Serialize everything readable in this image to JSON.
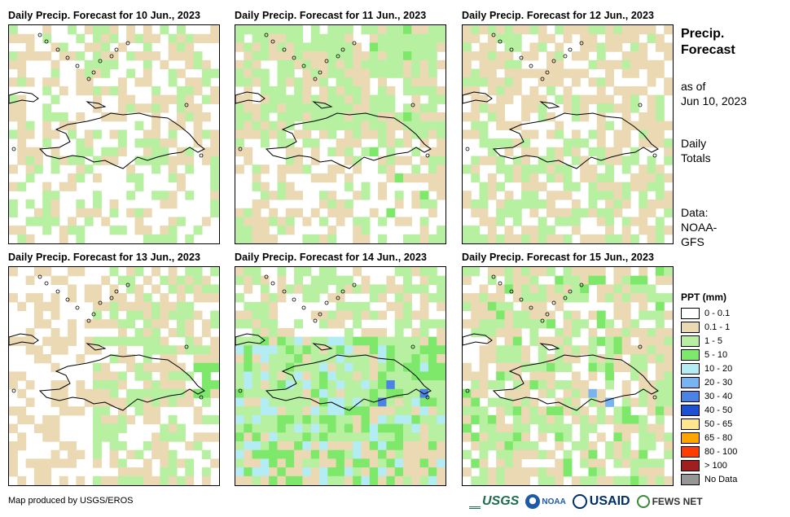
{
  "panels": [
    {
      "title": "Daily Precip. Forecast for 10 Jun., 2023",
      "seed": 11,
      "regime": "dry"
    },
    {
      "title": "Daily Precip. Forecast for 11 Jun., 2023",
      "seed": 23,
      "regime": "wetnorth"
    },
    {
      "title": "Daily Precip. Forecast for 12 Jun., 2023",
      "seed": 37,
      "regime": "drysouth"
    },
    {
      "title": "Daily Precip. Forecast for 13 Jun., 2023",
      "seed": 41,
      "regime": "drywest"
    },
    {
      "title": "Daily Precip. Forecast for 14 Jun., 2023",
      "seed": 59,
      "regime": "wet"
    },
    {
      "title": "Daily Precip. Forecast for 15 Jun., 2023",
      "seed": 67,
      "regime": "mixed"
    }
  ],
  "sidebar": {
    "title_line1": "Precip.",
    "title_line2": "Forecast",
    "asof_line1": "as of",
    "asof_line2": "Jun 10, 2023",
    "totals_line1": "Daily",
    "totals_line2": "Totals",
    "data_line1": "Data:",
    "data_line2": "NOAA-",
    "data_line3": "GFS"
  },
  "legend": {
    "title": "PPT (mm)",
    "items": [
      {
        "label": "0 - 0.1",
        "color": "#ffffff"
      },
      {
        "label": "0.1 - 1",
        "color": "#ebd9b4"
      },
      {
        "label": "1 - 5",
        "color": "#b7f0a0"
      },
      {
        "label": "5 - 10",
        "color": "#7ee86a"
      },
      {
        "label": "10 - 20",
        "color": "#b4ecf4"
      },
      {
        "label": "20 - 30",
        "color": "#78b4f0"
      },
      {
        "label": "30 - 40",
        "color": "#4a82e6"
      },
      {
        "label": "40 - 50",
        "color": "#1e50d2"
      },
      {
        "label": "50 - 65",
        "color": "#ffe68c"
      },
      {
        "label": "65 - 80",
        "color": "#ffa500"
      },
      {
        "label": "80 - 100",
        "color": "#ff3c00"
      },
      {
        "label": "> 100",
        "color": "#a01e1e"
      },
      {
        "label": "No Data",
        "color": "#969696"
      }
    ]
  },
  "footer": {
    "credit": "Map produced by USGS/EROS",
    "logo_usgs": "USGS",
    "logo_noaa": "NOAA",
    "logo_usaid": "USAID",
    "logo_fews": "FEWS NET"
  }
}
